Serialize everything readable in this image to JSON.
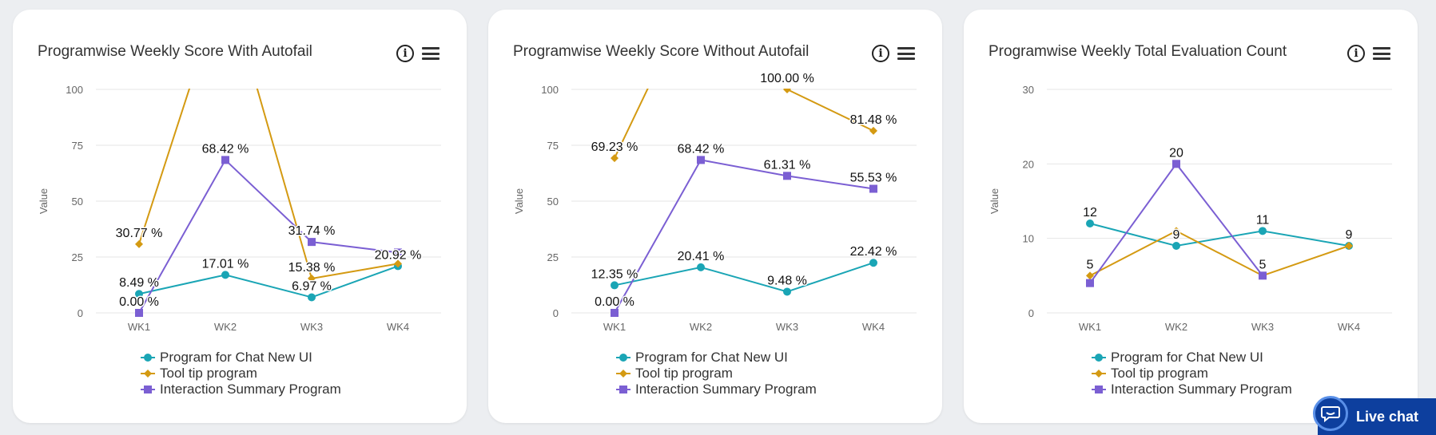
{
  "colors": {
    "series": [
      "#1aa5b5",
      "#d49a12",
      "#7b5fd3"
    ],
    "grid": "#e6e6e6",
    "axis_text": "#666666",
    "live_chat": "#0d3f9e"
  },
  "live_chat": {
    "label": "Live chat",
    "icon": "chat-bubble-icon"
  },
  "cards": [
    {
      "title": "Programwise Weekly Score With Autofail",
      "info_icon": "i",
      "menu_icon": "hamburger-icon"
    },
    {
      "title": "Programwise Weekly Score Without Autofail",
      "info_icon": "i",
      "menu_icon": "hamburger-icon"
    },
    {
      "title": "Programwise Weekly Total Evaluation Count",
      "info_icon": "i",
      "menu_icon": "hamburger-icon"
    }
  ],
  "chart_data": [
    {
      "type": "line",
      "title": "Programwise Weekly Score With Autofail",
      "ylabel": "Value",
      "categories": [
        "WK1",
        "WK2",
        "WK3",
        "WK4"
      ],
      "ylim": [
        0,
        100
      ],
      "yticks": [
        "0",
        "25",
        "50",
        "75",
        "100"
      ],
      "grid": true,
      "legend": "bottom",
      "series": [
        {
          "name": "Program for Chat New UI",
          "marker": "circle",
          "values": [
            8.49,
            17.01,
            6.97,
            20.92
          ],
          "labels": [
            "8.49 %",
            "17.01 %",
            "6.97 %",
            "20.92 %"
          ]
        },
        {
          "name": "Tool tip program",
          "marker": "diamond",
          "values": [
            30.77,
            150,
            15.38,
            22
          ],
          "labels": [
            "30.77 %",
            "",
            "15.38 %",
            ""
          ]
        },
        {
          "name": "Interaction Summary Program",
          "marker": "square",
          "values": [
            0,
            68.42,
            31.74,
            27
          ],
          "labels": [
            "0.00 %",
            "68.42 %",
            "31.74 %",
            ""
          ]
        }
      ]
    },
    {
      "type": "line",
      "title": "Programwise Weekly Score Without Autofail",
      "ylabel": "Value",
      "categories": [
        "WK1",
        "WK2",
        "WK3",
        "WK4"
      ],
      "ylim": [
        0,
        100
      ],
      "yticks": [
        "0",
        "25",
        "50",
        "75",
        "100"
      ],
      "grid": true,
      "legend": "bottom",
      "series": [
        {
          "name": "Program for Chat New UI",
          "marker": "circle",
          "values": [
            12.35,
            20.41,
            9.48,
            22.42
          ],
          "labels": [
            "12.35 %",
            "20.41 %",
            "9.48 %",
            "22.42 %"
          ]
        },
        {
          "name": "Tool tip program",
          "marker": "diamond",
          "values": [
            69.23,
            150,
            100,
            81.48
          ],
          "labels": [
            "69.23 %",
            "",
            "100.00 %",
            "81.48 %"
          ]
        },
        {
          "name": "Interaction Summary Program",
          "marker": "square",
          "values": [
            0,
            68.42,
            61.31,
            55.53
          ],
          "labels": [
            "0.00 %",
            "68.42 %",
            "61.31 %",
            "55.53 %"
          ]
        }
      ]
    },
    {
      "type": "line",
      "title": "Programwise Weekly Total Evaluation Count",
      "ylabel": "Value",
      "categories": [
        "WK1",
        "WK2",
        "WK3",
        "WK4"
      ],
      "ylim": [
        0,
        30
      ],
      "yticks": [
        "0",
        "10",
        "20",
        "30"
      ],
      "grid": true,
      "legend": "bottom",
      "series": [
        {
          "name": "Program for Chat New UI",
          "marker": "circle",
          "values": [
            12,
            9,
            11,
            9
          ],
          "labels": [
            "12",
            "9",
            "11",
            "9"
          ]
        },
        {
          "name": "Tool tip program",
          "marker": "diamond",
          "values": [
            5,
            11,
            5,
            9
          ],
          "labels": [
            "5",
            "",
            "",
            ""
          ]
        },
        {
          "name": "Interaction Summary Program",
          "marker": "square",
          "values": [
            4,
            20,
            5,
            null
          ],
          "labels": [
            "",
            "20",
            "5",
            ""
          ]
        }
      ]
    }
  ]
}
